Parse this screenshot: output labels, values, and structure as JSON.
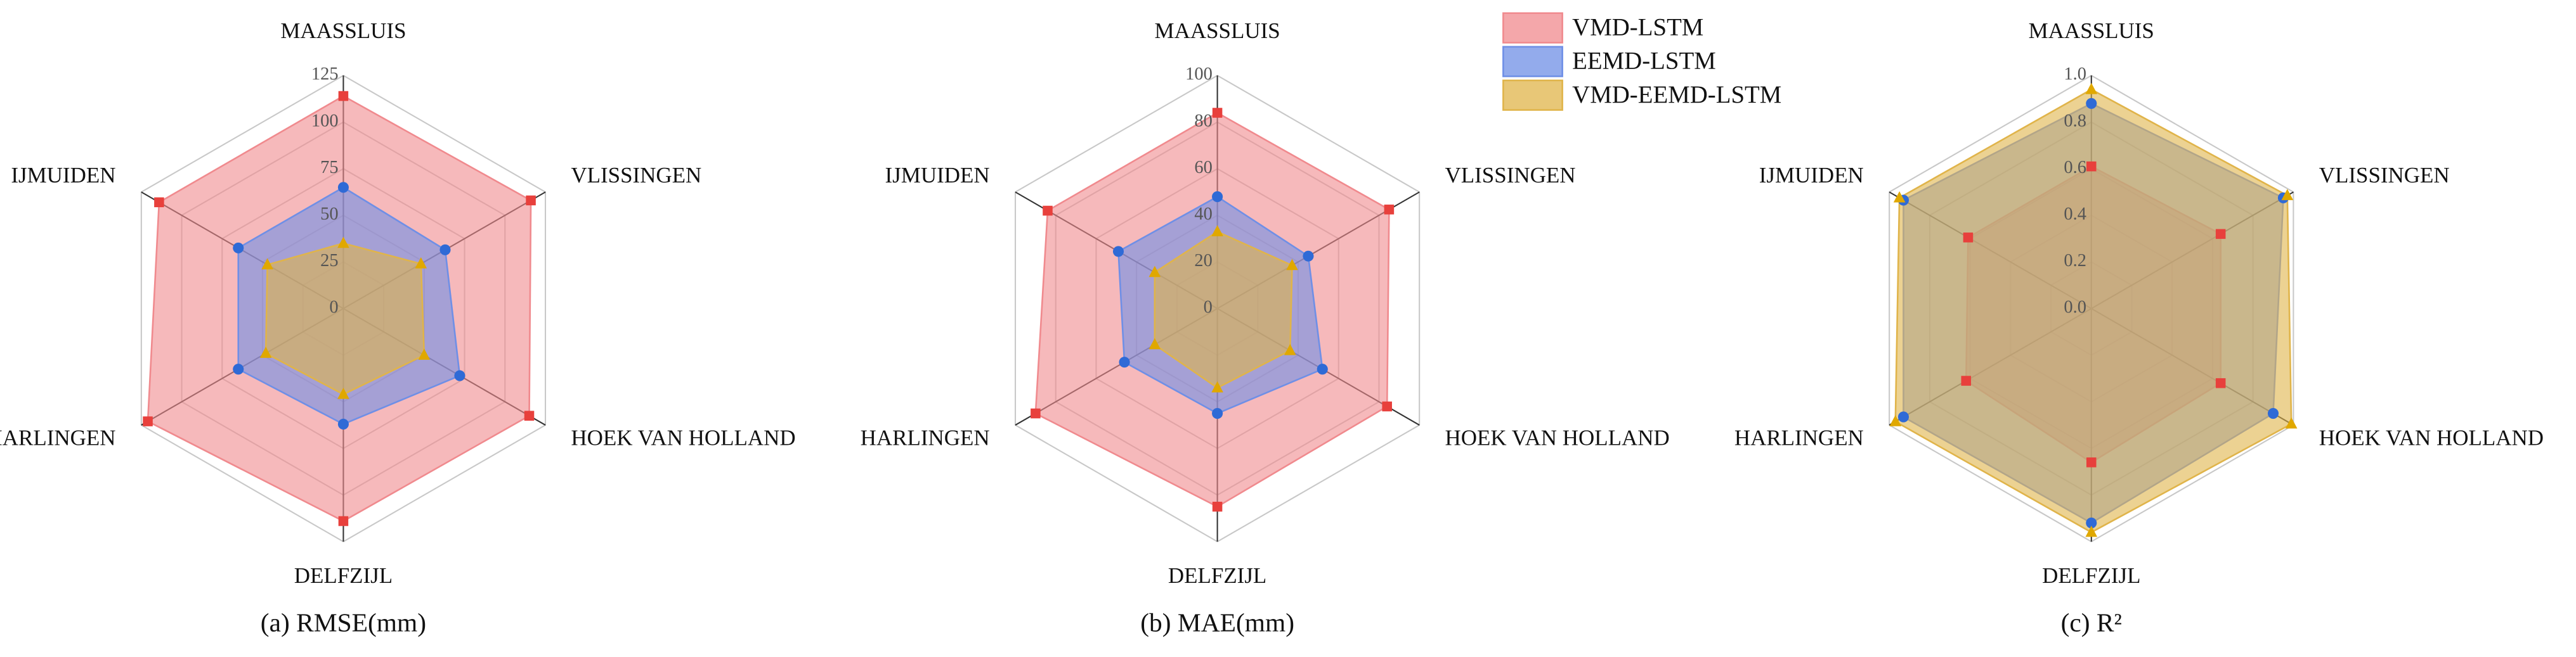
{
  "chart_data": [
    {
      "type": "radar",
      "caption": "(a)  RMSE(mm)",
      "categories": [
        "MAASSLUIS",
        "VLISSINGEN",
        "HOEK VAN HOLLAND",
        "DELFZIJL",
        "HARLINGEN",
        "IJMUIDEN"
      ],
      "ylim": [
        0,
        125
      ],
      "yticks": [
        0,
        25,
        50,
        75,
        100,
        125
      ],
      "series": [
        {
          "name": "VMD-LSTM",
          "color": "#f08a8e",
          "values": [
            114,
            116,
            115,
            114,
            121,
            114
          ]
        },
        {
          "name": "EEMD-LSTM",
          "color": "#6f8fe6",
          "values": [
            65,
            63,
            72,
            62,
            65,
            65
          ]
        },
        {
          "name": "VMD-EEMD-LSTM",
          "color": "#e0b44a",
          "values": [
            35,
            48,
            50,
            46,
            48,
            47
          ]
        }
      ]
    },
    {
      "type": "radar",
      "caption": "(b)  MAE(mm)",
      "categories": [
        "MAASSLUIS",
        "VLISSINGEN",
        "HOEK VAN HOLLAND",
        "DELFZIJL",
        "HARLINGEN",
        "IJMUIDEN"
      ],
      "ylim": [
        0,
        100
      ],
      "yticks": [
        0,
        20,
        40,
        60,
        80,
        100
      ],
      "series": [
        {
          "name": "VMD-LSTM",
          "color": "#f08a8e",
          "values": [
            84,
            85,
            84,
            85,
            90,
            84
          ]
        },
        {
          "name": "EEMD-LSTM",
          "color": "#6f8fe6",
          "values": [
            48,
            45,
            52,
            45,
            46,
            49
          ]
        },
        {
          "name": "VMD-EEMD-LSTM",
          "color": "#e0b44a",
          "values": [
            33,
            37,
            36,
            34,
            31,
            31
          ]
        }
      ]
    },
    {
      "type": "radar",
      "caption": "(c)  R²",
      "categories": [
        "MAASSLUIS",
        "VLISSINGEN",
        "HOEK VAN HOLLAND",
        "DELFZIJL",
        "HARLINGEN",
        "IJMUIDEN"
      ],
      "ylim": [
        0,
        1
      ],
      "yticks": [
        {
          "value": 0,
          "label": "0.0"
        },
        0.2,
        0.4,
        0.6,
        0.8,
        {
          "value": 1,
          "label": "1.0"
        }
      ],
      "series": [
        {
          "name": "VMD-LSTM",
          "color": "#f08a8e",
          "values": [
            0.61,
            0.64,
            0.64,
            0.66,
            0.62,
            0.61
          ]
        },
        {
          "name": "EEMD-LSTM",
          "color": "#6f8fe6",
          "values": [
            0.88,
            0.95,
            0.9,
            0.92,
            0.93,
            0.93
          ]
        },
        {
          "name": "VMD-EEMD-LSTM",
          "color": "#e0b44a",
          "values": [
            0.94,
            0.97,
            0.99,
            0.96,
            0.97,
            0.95
          ]
        }
      ]
    }
  ]
}
